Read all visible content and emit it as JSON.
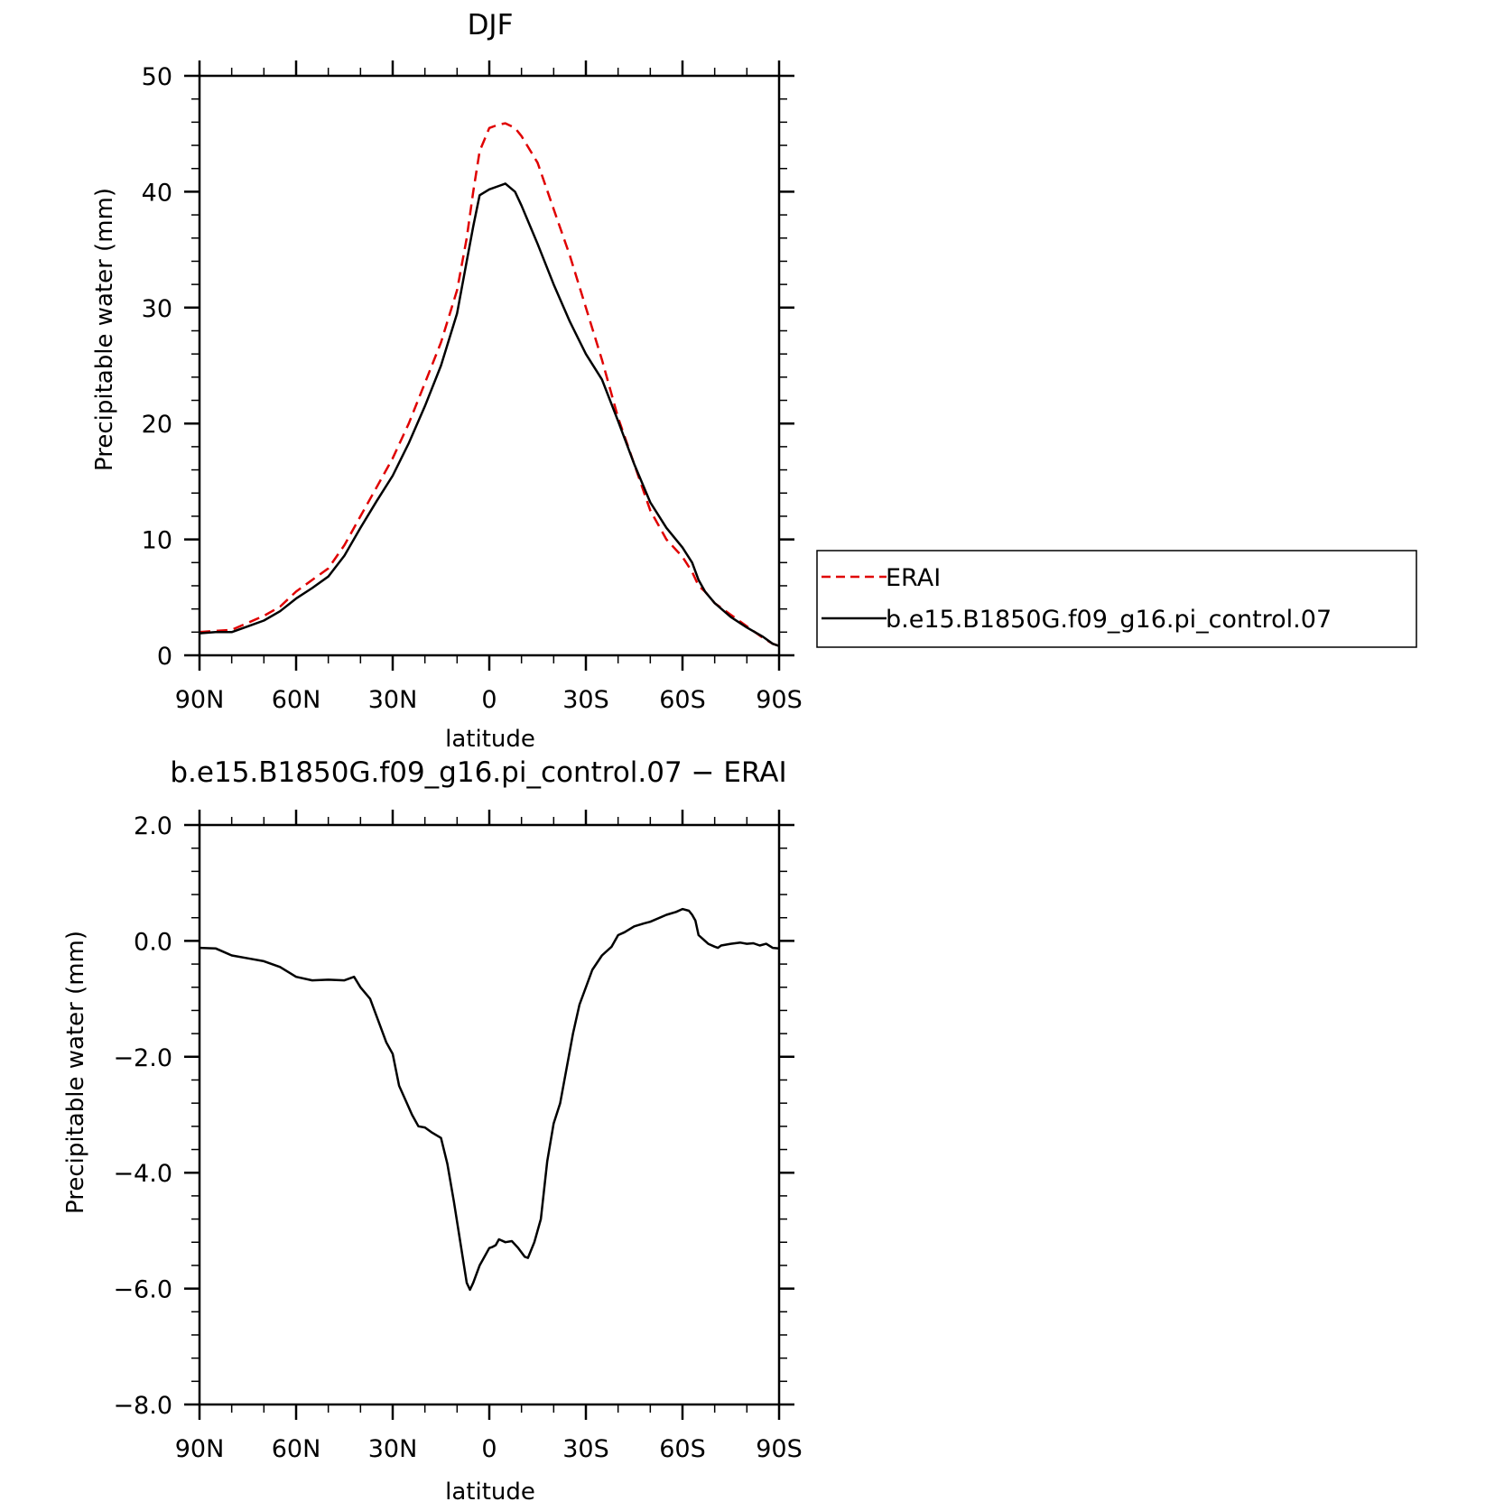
{
  "chart_data": [
    {
      "type": "line",
      "title": "DJF",
      "xlabel": "latitude",
      "ylabel": "Precipitable water (mm)",
      "xlim": [
        -90,
        90
      ],
      "ylim": [
        0,
        50
      ],
      "x_ticks": [
        -90,
        -60,
        -30,
        0,
        30,
        60,
        90
      ],
      "x_tick_labels": [
        "90N",
        "60N",
        "30N",
        "0",
        "30S",
        "60S",
        "90S"
      ],
      "y_ticks": [
        0,
        10,
        20,
        30,
        40,
        50
      ],
      "y_tick_labels": [
        "0",
        "10",
        "20",
        "30",
        "40",
        "50"
      ],
      "legend_position": "right",
      "series": [
        {
          "name": "ERAI",
          "color": "#e00000",
          "style": "dashed",
          "x": [
            -90,
            -85,
            -80,
            -75,
            -70,
            -65,
            -60,
            -55,
            -50,
            -45,
            -40,
            -35,
            -30,
            -25,
            -20,
            -15,
            -10,
            -7,
            -5,
            -3,
            0,
            3,
            5,
            8,
            10,
            15,
            20,
            25,
            30,
            35,
            40,
            45,
            50,
            55,
            60,
            63,
            65,
            67,
            70,
            75,
            80,
            85,
            88,
            90
          ],
          "y": [
            2.0,
            2.1,
            2.2,
            2.8,
            3.4,
            4.2,
            5.5,
            6.5,
            7.5,
            9.5,
            12.0,
            14.5,
            17.0,
            20.0,
            23.5,
            27.0,
            31.5,
            36.0,
            40.0,
            43.5,
            45.5,
            45.8,
            45.9,
            45.5,
            44.8,
            42.5,
            38.5,
            34.5,
            30.0,
            25.5,
            20.5,
            16.5,
            12.5,
            10.0,
            8.5,
            7.2,
            6.0,
            5.5,
            4.5,
            3.5,
            2.5,
            1.5,
            1.0,
            0.8
          ]
        },
        {
          "name": "b.e15.B1850G.f09_g16.pi_control.07",
          "color": "#000000",
          "style": "solid",
          "x": [
            -90,
            -85,
            -80,
            -75,
            -70,
            -65,
            -60,
            -55,
            -50,
            -45,
            -40,
            -35,
            -30,
            -25,
            -20,
            -15,
            -10,
            -7,
            -5,
            -3,
            0,
            3,
            5,
            8,
            10,
            15,
            20,
            25,
            30,
            35,
            40,
            45,
            50,
            55,
            60,
            63,
            65,
            67,
            70,
            75,
            80,
            85,
            88,
            90
          ],
          "y": [
            1.9,
            2.0,
            2.0,
            2.5,
            3.0,
            3.8,
            4.9,
            5.8,
            6.8,
            8.6,
            11.0,
            13.3,
            15.5,
            18.3,
            21.5,
            25.0,
            29.5,
            34.0,
            37.0,
            39.7,
            40.2,
            40.5,
            40.7,
            40.0,
            38.8,
            35.5,
            32.0,
            28.8,
            26.0,
            23.8,
            20.2,
            16.5,
            13.2,
            11.0,
            9.3,
            8.0,
            6.5,
            5.5,
            4.5,
            3.3,
            2.4,
            1.6,
            1.0,
            0.8
          ]
        }
      ]
    },
    {
      "type": "line",
      "title": "b.e15.B1850G.f09_g16.pi_control.07 − ERAI",
      "xlabel": "latitude",
      "ylabel": "Precipitable water (mm)",
      "xlim": [
        -90,
        90
      ],
      "ylim": [
        -8.0,
        2.0
      ],
      "x_ticks": [
        -90,
        -60,
        -30,
        0,
        30,
        60,
        90
      ],
      "x_tick_labels": [
        "90N",
        "60N",
        "30N",
        "0",
        "30S",
        "60S",
        "90S"
      ],
      "y_ticks": [
        -8,
        -6,
        -4,
        -2,
        0,
        2
      ],
      "y_tick_labels": [
        "−8.0",
        "−6.0",
        "−4.0",
        "−2.0",
        "0.0",
        "2.0"
      ],
      "series": [
        {
          "color": "#000000",
          "style": "solid",
          "x": [
            -90,
            -85,
            -80,
            -75,
            -70,
            -65,
            -60,
            -55,
            -50,
            -45,
            -42,
            -40,
            -37,
            -35,
            -32,
            -30,
            -28,
            -26,
            -24,
            -22,
            -20,
            -18,
            -15,
            -13,
            -11,
            -9,
            -7,
            -6,
            -5,
            -3,
            -2,
            0,
            1,
            2,
            3,
            5,
            7,
            9,
            11,
            12,
            14,
            16,
            18,
            20,
            22,
            24,
            26,
            28,
            30,
            32,
            35,
            38,
            40,
            42,
            45,
            48,
            50,
            55,
            58,
            60,
            62,
            63,
            64,
            65,
            67,
            68,
            70,
            71,
            72,
            75,
            78,
            80,
            82,
            84,
            86,
            88,
            90
          ],
          "y": [
            -0.12,
            -0.13,
            -0.25,
            -0.3,
            -0.35,
            -0.45,
            -0.62,
            -0.68,
            -0.67,
            -0.68,
            -0.62,
            -0.8,
            -1.0,
            -1.3,
            -1.75,
            -1.95,
            -2.5,
            -2.75,
            -3.0,
            -3.2,
            -3.22,
            -3.3,
            -3.4,
            -3.85,
            -4.5,
            -5.2,
            -5.9,
            -6.02,
            -5.9,
            -5.6,
            -5.5,
            -5.3,
            -5.28,
            -5.25,
            -5.15,
            -5.2,
            -5.18,
            -5.3,
            -5.45,
            -5.47,
            -5.2,
            -4.8,
            -3.8,
            -3.15,
            -2.8,
            -2.2,
            -1.6,
            -1.1,
            -0.8,
            -0.5,
            -0.25,
            -0.1,
            0.1,
            0.15,
            0.25,
            0.3,
            0.33,
            0.45,
            0.5,
            0.55,
            0.52,
            0.45,
            0.35,
            0.1,
            0.0,
            -0.05,
            -0.1,
            -0.12,
            -0.08,
            -0.05,
            -0.03,
            -0.05,
            -0.04,
            -0.08,
            -0.05,
            -0.12,
            -0.13
          ]
        }
      ]
    }
  ]
}
